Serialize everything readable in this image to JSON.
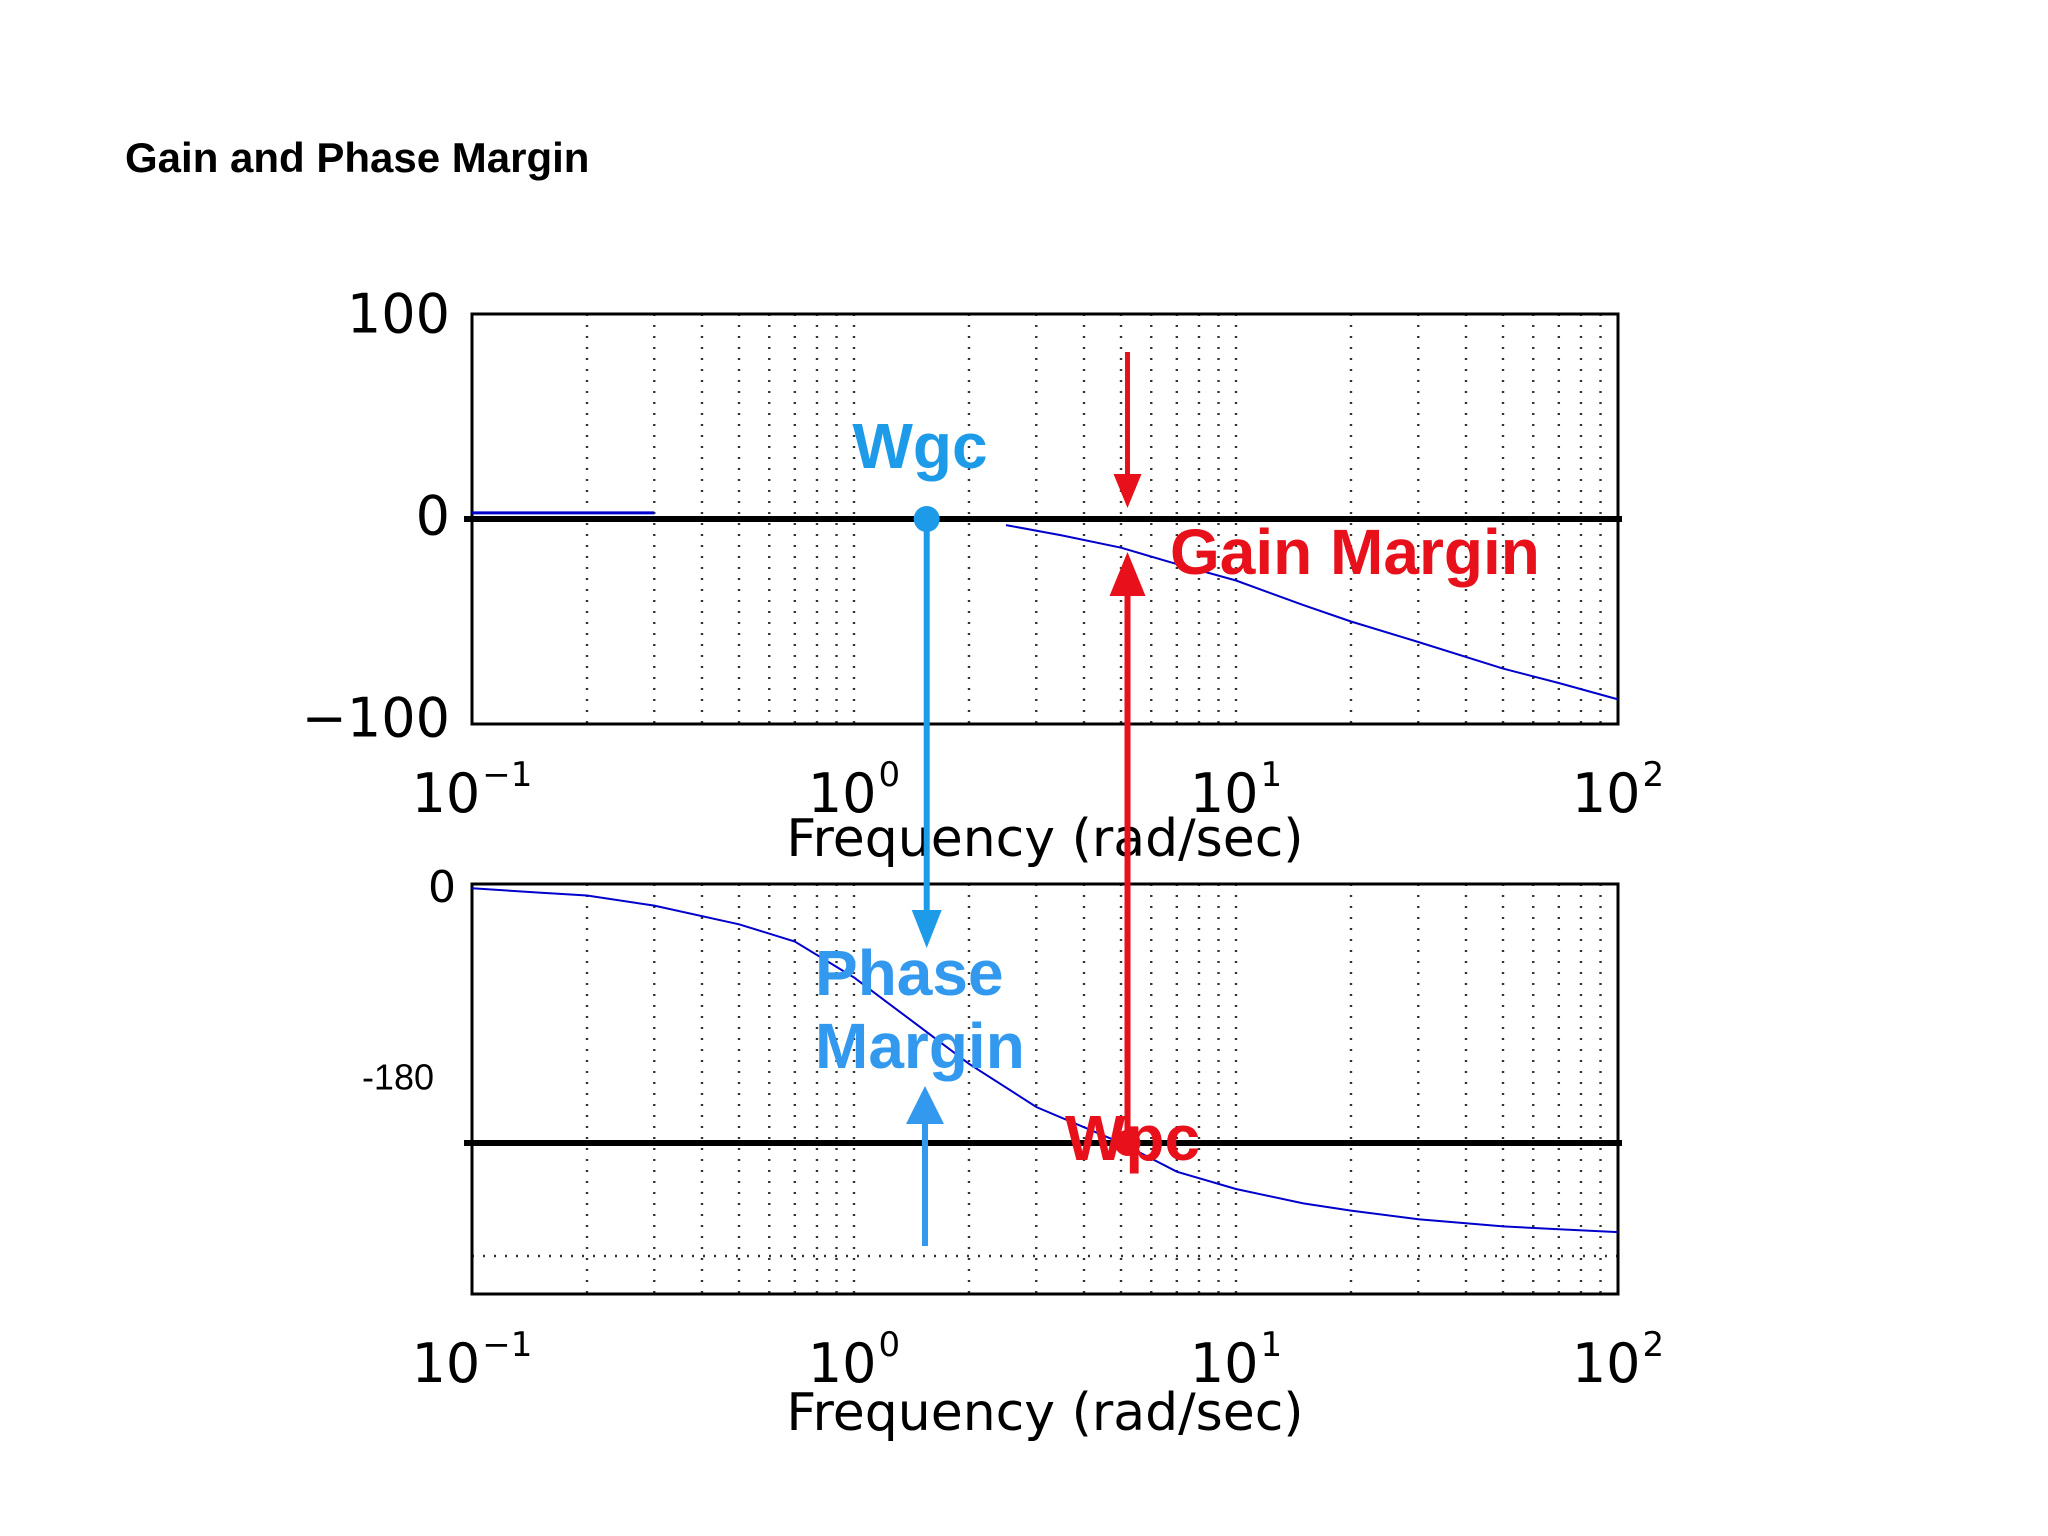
{
  "slide": {
    "title": "Gain and Phase Margin"
  },
  "chart_data": [
    {
      "type": "line",
      "panel": "magnitude",
      "xscale": "log",
      "xlim": [
        0.1,
        100
      ],
      "ylim": [
        -100,
        100
      ],
      "xlabel": "Frequency (rad/sec)",
      "ylabel": "",
      "grid": true,
      "x_ticks": [
        {
          "base": "10",
          "exp": "−1"
        },
        {
          "base": "10",
          "exp": "0"
        },
        {
          "base": "10",
          "exp": "1"
        },
        {
          "base": "10",
          "exp": "2"
        }
      ],
      "y_ticks": [
        "100",
        "0",
        "−100"
      ],
      "reference_line": {
        "y": 0
      },
      "series": [
        {
          "color": "#0000cc",
          "x": [
            0.1,
            0.3,
            2.5,
            3.5,
            5,
            7,
            10,
            15,
            20,
            30,
            50,
            70,
            100
          ],
          "y": [
            3,
            3,
            -3,
            -8,
            -14,
            -22,
            -30,
            -42,
            -50,
            -60,
            -73,
            -80,
            -88
          ]
        }
      ]
    },
    {
      "type": "line",
      "panel": "phase",
      "xscale": "log",
      "xlim": [
        0.1,
        100
      ],
      "ylim": [
        -285,
        0
      ],
      "xlabel": "Frequency (rad/sec)",
      "ylabel": "",
      "grid": true,
      "x_ticks": [
        {
          "base": "10",
          "exp": "−1"
        },
        {
          "base": "10",
          "exp": "0"
        },
        {
          "base": "10",
          "exp": "1"
        },
        {
          "base": "10",
          "exp": "2"
        }
      ],
      "y_ticks": [
        "0",
        "-180"
      ],
      "reference_line": {
        "y": -180
      },
      "series": [
        {
          "color": "#0000cc",
          "x": [
            0.1,
            0.15,
            0.2,
            0.3,
            0.5,
            0.7,
            1,
            1.5,
            2,
            3,
            5,
            7,
            10,
            15,
            20,
            30,
            50,
            70,
            100
          ],
          "y": [
            -3,
            -6,
            -8,
            -15,
            -28,
            -40,
            -65,
            -100,
            -125,
            -155,
            -180,
            -200,
            -212,
            -222,
            -227,
            -233,
            -238,
            -240,
            -242
          ]
        }
      ]
    }
  ],
  "annotations": {
    "wgc": {
      "label": "Wgc",
      "freq": 1.55,
      "color": "#1e9be8"
    },
    "wpc": {
      "label": "Wpc",
      "freq": 5.2,
      "color": "#e8101a"
    },
    "gain_margin": {
      "label": "Gain Margin",
      "color": "#e8101a"
    },
    "phase_margin": {
      "line1": "Phase",
      "line2": "Margin",
      "color": "#3399ee"
    }
  }
}
